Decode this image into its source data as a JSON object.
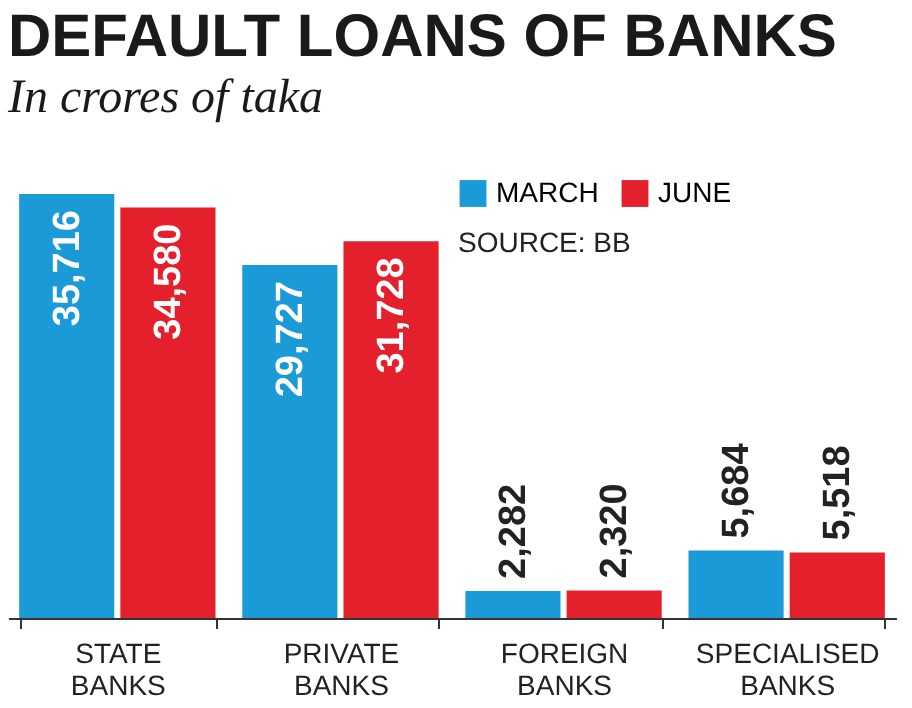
{
  "chart_data": {
    "type": "bar",
    "title": "DEFAULT LOANS OF BANKS",
    "subtitle": "In crores of taka",
    "categories": [
      "STATE BANKS",
      "PRIVATE BANKS",
      "FOREIGN BANKS",
      "SPECIALISED BANKS"
    ],
    "series": [
      {
        "name": "MARCH",
        "color": "#1b9ad8",
        "values": [
          35716,
          29727,
          2282,
          5684
        ],
        "value_labels": [
          "35,716",
          "29,727",
          "2,282",
          "5,684"
        ]
      },
      {
        "name": "JUNE",
        "color": "#e3202b",
        "values": [
          34580,
          31728,
          2320,
          5518
        ],
        "value_labels": [
          "34,580",
          "31,728",
          "2,320",
          "5,518"
        ]
      }
    ],
    "legend": "top right",
    "grid": false,
    "annotations": [
      "SOURCE: BB"
    ]
  }
}
